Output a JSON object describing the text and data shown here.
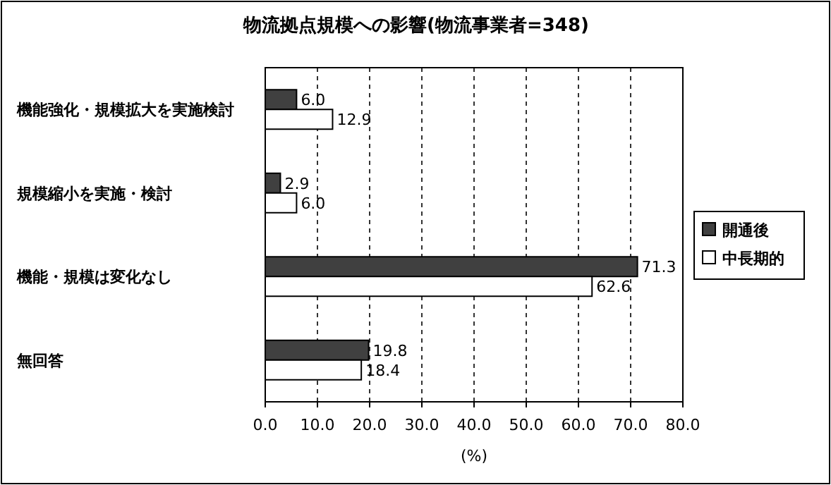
{
  "chart_data": {
    "type": "bar",
    "orientation": "horizontal",
    "title": "物流拠点規模への影響(物流事業者=348)",
    "xlabel": "(%)",
    "categories": [
      "機能強化・規模拡大を実施検討",
      "規模縮小を実施・検討",
      "機能・規模は変化なし",
      "無回答"
    ],
    "series": [
      {
        "name": "開通後",
        "color": "#404040",
        "values": [
          6.0,
          2.9,
          71.3,
          19.8
        ],
        "value_labels": [
          "6.0",
          "2.9",
          "71.3",
          "19.8"
        ]
      },
      {
        "name": "中長期的",
        "color": "#ffffff",
        "values": [
          12.9,
          6.0,
          62.6,
          18.4
        ],
        "value_labels": [
          "12.9",
          "6.0",
          "62.6",
          "18.4"
        ]
      }
    ],
    "xlim": [
      0,
      80
    ],
    "xticks": [
      {
        "value": 0,
        "label": "0.0"
      },
      {
        "value": 10,
        "label": "10.0"
      },
      {
        "value": 20,
        "label": "20.0"
      },
      {
        "value": 30,
        "label": "30.0"
      },
      {
        "value": 40,
        "label": "40.0"
      },
      {
        "value": 50,
        "label": "50.0"
      },
      {
        "value": 60,
        "label": "60.0"
      },
      {
        "value": 70,
        "label": "70.0"
      },
      {
        "value": 80,
        "label": "80.0"
      }
    ],
    "grid": "x",
    "legend": "right"
  }
}
